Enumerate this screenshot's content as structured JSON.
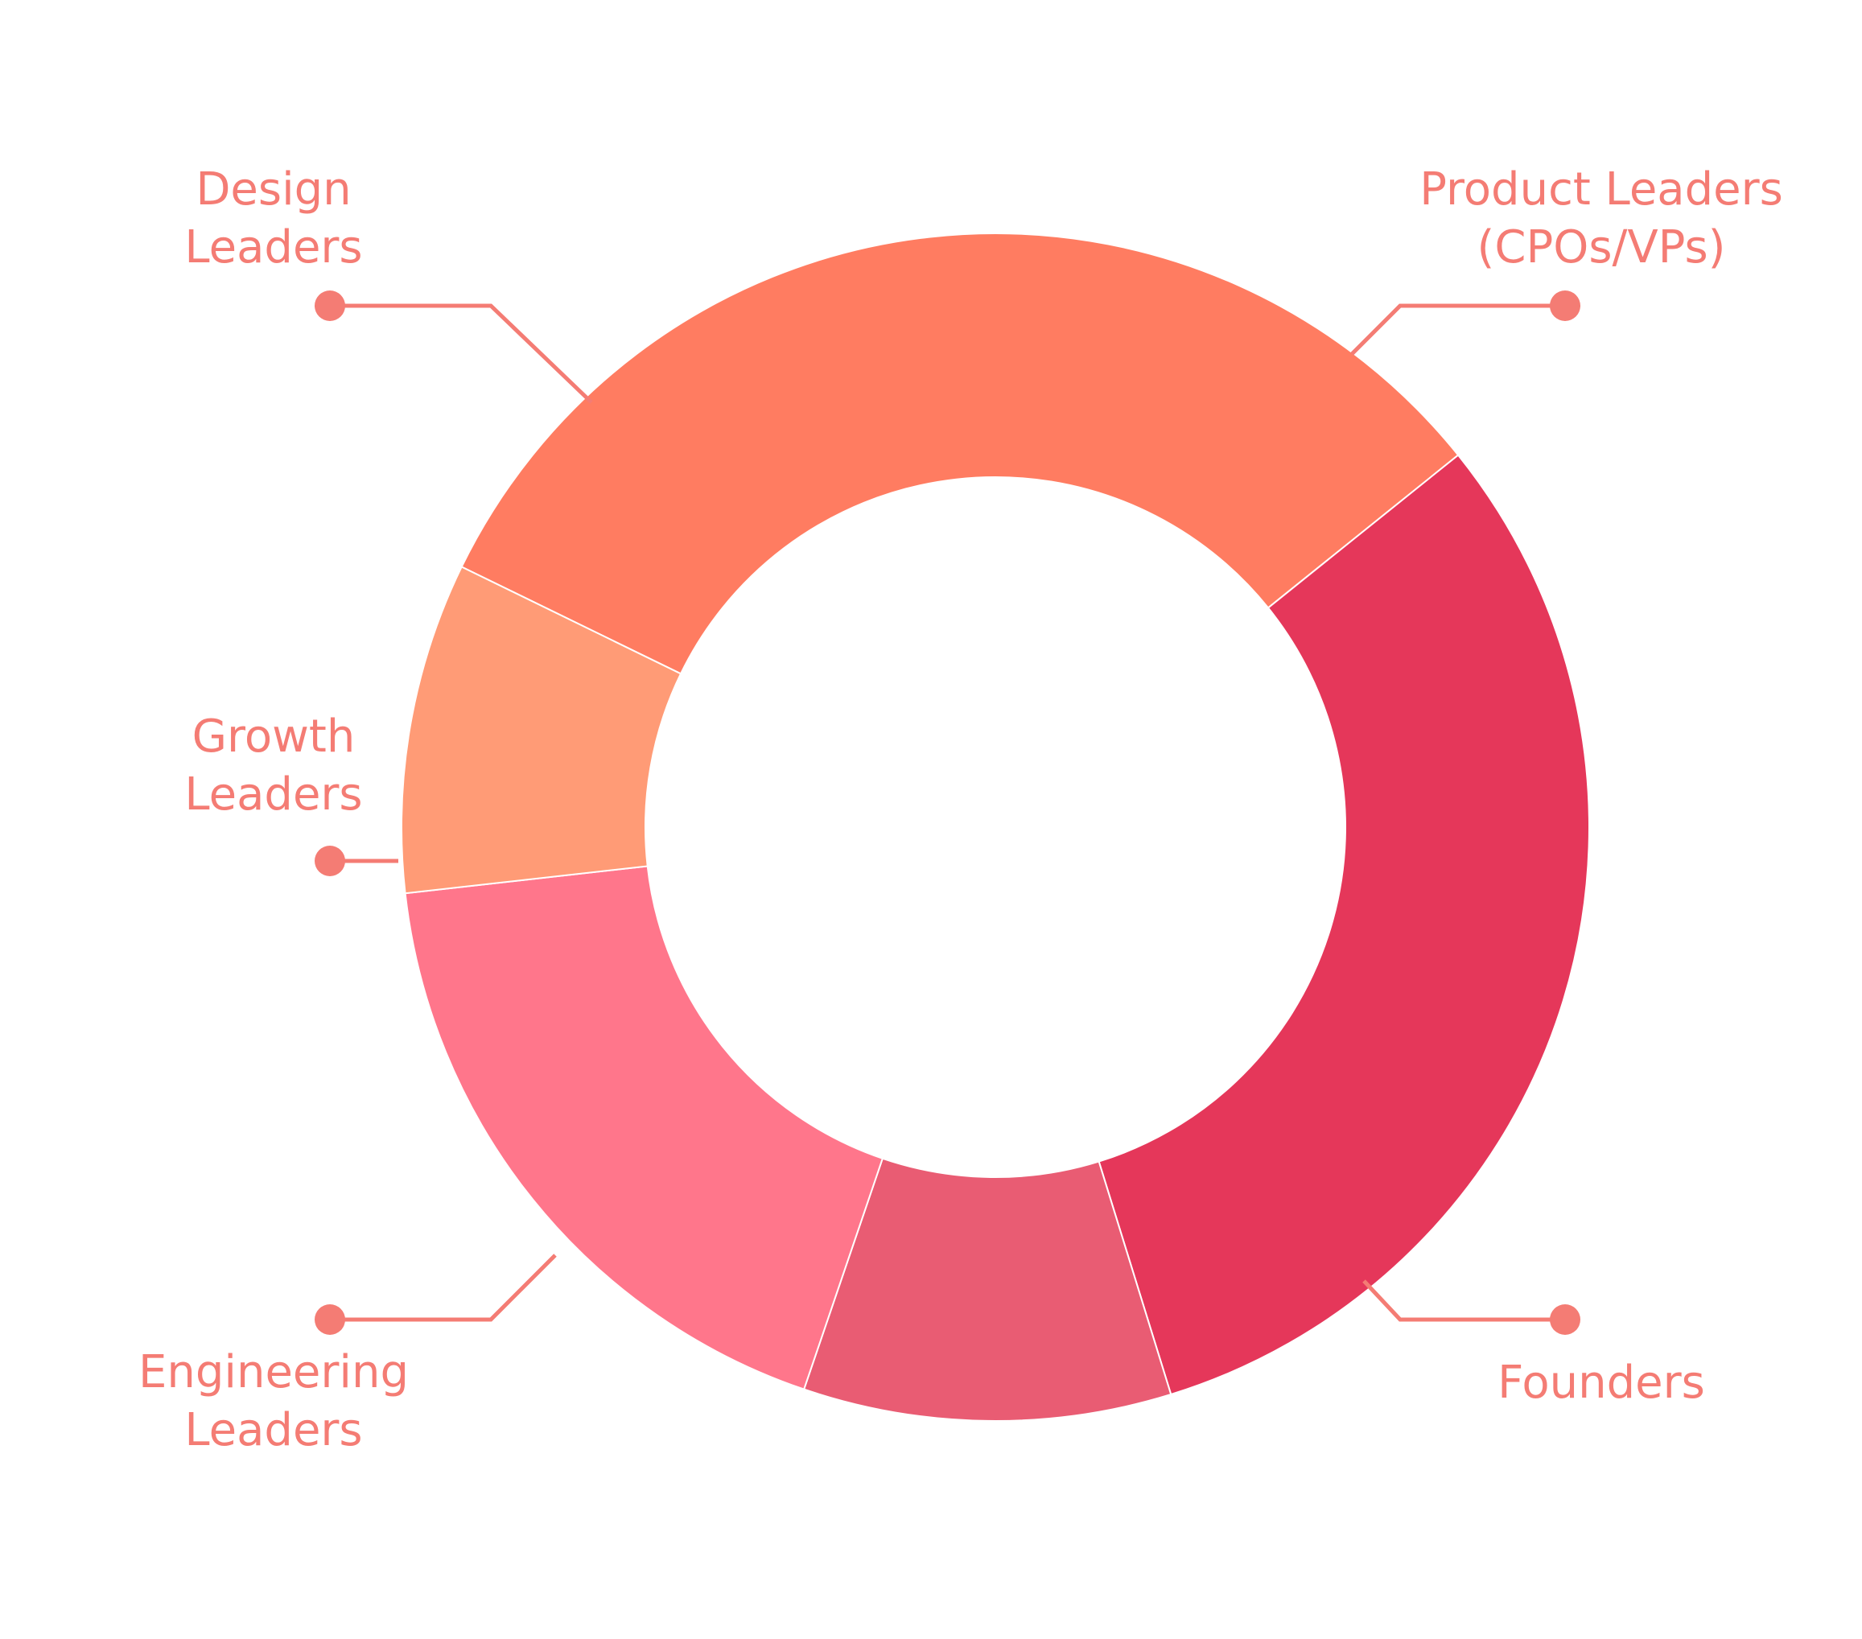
{
  "chart_data": {
    "type": "pie",
    "variant": "donut",
    "categories": [
      "Product Leaders (CPOs/VPs)",
      "Founders",
      "Engineering Leaders",
      "Growth Leaders",
      "Design Leaders"
    ],
    "series": [
      {
        "values": [
          32,
          31,
          10,
          18,
          9
        ]
      }
    ],
    "colors": [
      "#ff7c61",
      "#e5375a",
      "#e95c73",
      "#ff768b",
      "#ff9b76"
    ],
    "legend": "callout-labels",
    "label_color": "#f47c74"
  },
  "labels": [
    {
      "line1": "Product Leaders",
      "line2": "(CPOs/VPs)"
    },
    {
      "line1": "Founders",
      "line2": ""
    },
    {
      "line1": "Engineering",
      "line2": "Leaders"
    },
    {
      "line1": "Growth",
      "line2": "Leaders"
    },
    {
      "line1": "Design",
      "line2": "Leaders"
    }
  ]
}
